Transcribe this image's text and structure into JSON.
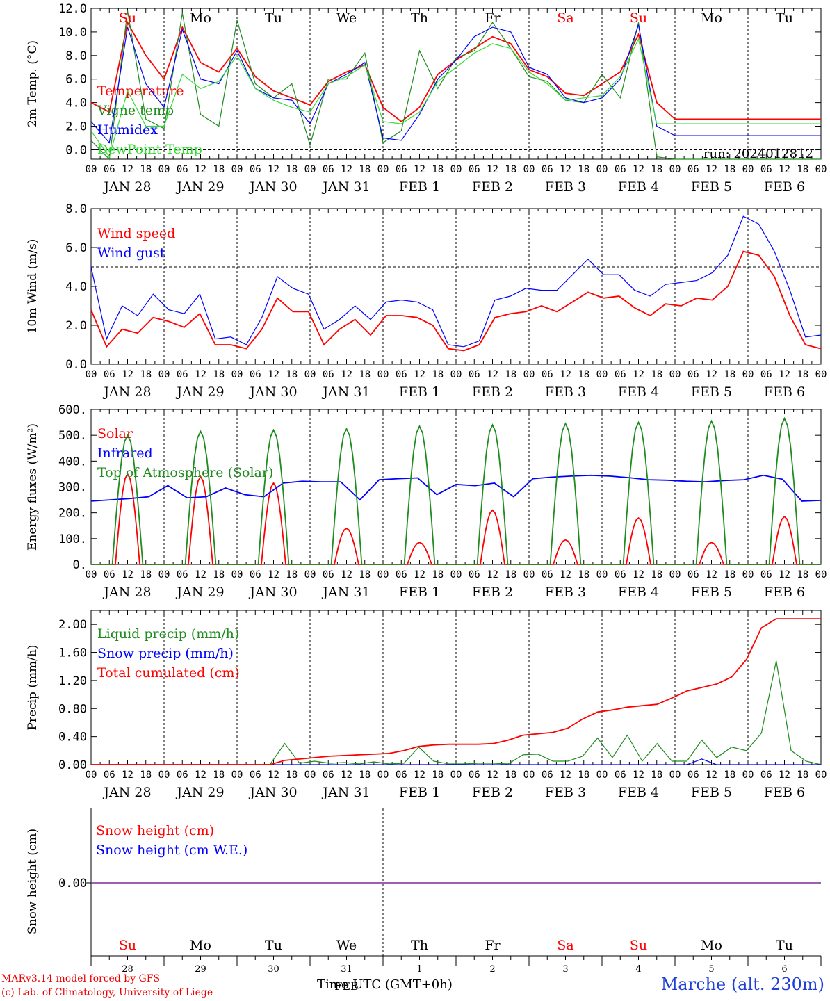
{
  "days": [
    "JAN 28",
    "JAN 29",
    "JAN 30",
    "JAN 31",
    "FEB  1",
    "FEB  2",
    "FEB  3",
    "FEB  4",
    "FEB  5",
    "FEB  6"
  ],
  "weekdays": [
    "Su",
    "Mo",
    "Tu",
    "We",
    "Th",
    "Fr",
    "Sa",
    "Su",
    "Mo",
    "Tu"
  ],
  "weekend_flags": [
    true,
    false,
    false,
    false,
    false,
    false,
    true,
    true,
    false,
    false
  ],
  "day_numbers": [
    "28",
    "29",
    "30",
    "31",
    "1",
    "2",
    "3",
    "4",
    "5",
    "6"
  ],
  "hour_ticks": [
    "00",
    "06",
    "12",
    "18"
  ],
  "colors": {
    "red": "#ff0000",
    "blue": "#0000ff",
    "darkgreen": "#1e8c1e",
    "lightgreen": "#33dd33",
    "purple": "#7a2a9a"
  },
  "footer": {
    "model_line1": "MARv3.14 model forced by GFS",
    "model_line2": "(c) Lab. of Climatology, University of Liege",
    "axis_title": "Time UTC (GMT+0h)",
    "station": "Marche (alt. 230m)",
    "month_label": "FEB"
  },
  "chart_data": [
    {
      "type": "line",
      "ylabel": "2m Temp. (°C)",
      "ylim": [
        -0.8,
        12.0
      ],
      "yticks": [
        "12.0",
        "10.0",
        "8.0",
        "6.0",
        "4.0",
        "2.0",
        "0.0"
      ],
      "ytick_values": [
        12,
        10,
        8,
        6,
        4,
        2,
        0
      ],
      "run_label": "run: 2024012812",
      "dashed_zero": true,
      "x_hours": [
        0,
        6,
        12,
        18,
        24,
        30,
        36,
        42,
        48,
        54,
        60,
        66,
        72,
        78,
        84,
        90,
        96,
        102,
        108,
        114,
        120,
        126,
        132,
        138,
        144,
        150,
        156,
        162,
        168,
        174,
        180,
        186,
        192,
        198,
        204,
        210,
        216,
        222,
        228,
        234,
        240
      ],
      "series": [
        {
          "name": "Temperature",
          "color": "red",
          "values": [
            4.0,
            3.2,
            10.8,
            8.0,
            6.0,
            10.4,
            7.4,
            6.6,
            8.6,
            6.2,
            5.0,
            4.4,
            3.8,
            5.8,
            6.6,
            7.2,
            3.6,
            2.4,
            3.6,
            6.4,
            7.6,
            8.6,
            9.6,
            9.0,
            6.8,
            6.2,
            4.8,
            4.6,
            5.6,
            6.6,
            9.8,
            4.0,
            2.6,
            2.6,
            2.6,
            2.6,
            2.6,
            2.6,
            2.6,
            2.6,
            2.6
          ]
        },
        {
          "name": "Vigne temp",
          "color": "darkgreen",
          "values": [
            0.8,
            -0.8,
            11.8,
            2.6,
            1.8,
            11.6,
            3.0,
            2.0,
            11.0,
            5.6,
            4.4,
            5.6,
            0.4,
            6.0,
            6.0,
            8.2,
            0.6,
            1.6,
            8.4,
            5.2,
            7.8,
            8.4,
            10.8,
            8.6,
            6.2,
            5.8,
            4.2,
            4.0,
            6.4,
            4.4,
            10.8,
            -0.6,
            -0.8,
            -0.8,
            -0.8,
            -0.8,
            -0.8,
            -0.8,
            -0.8,
            -0.8,
            -0.8
          ]
        },
        {
          "name": "Humidex",
          "color": "blue",
          "values": [
            2.4,
            0.6,
            10.4,
            5.6,
            3.6,
            10.2,
            6.0,
            5.6,
            8.4,
            5.2,
            4.4,
            4.2,
            2.2,
            5.6,
            6.4,
            7.4,
            1.0,
            0.8,
            3.0,
            6.0,
            7.6,
            9.6,
            10.4,
            10.0,
            7.0,
            6.4,
            4.4,
            4.0,
            4.4,
            6.0,
            10.6,
            2.0,
            1.2,
            1.2,
            1.2,
            1.2,
            1.2,
            1.2,
            1.2,
            1.2,
            1.2
          ]
        },
        {
          "name": "DewPoint Temp",
          "color": "lightgreen",
          "values": [
            1.6,
            -0.6,
            5.0,
            2.0,
            2.0,
            6.4,
            5.2,
            5.8,
            8.0,
            5.2,
            4.2,
            3.6,
            3.2,
            5.6,
            6.2,
            7.2,
            2.4,
            2.2,
            3.2,
            5.8,
            7.0,
            8.2,
            9.0,
            8.6,
            6.6,
            5.6,
            4.2,
            4.4,
            4.6,
            6.2,
            9.4,
            2.2,
            2.2,
            2.2,
            2.2,
            2.2,
            2.2,
            2.2,
            2.2,
            2.2,
            2.2
          ]
        }
      ]
    },
    {
      "type": "line",
      "ylabel": "10m Wind (m/s)",
      "ylim": [
        0,
        8.0
      ],
      "yticks": [
        "8.0",
        "6.0",
        "4.0",
        "2.0",
        "0.0"
      ],
      "ytick_values": [
        8,
        6,
        4,
        2,
        0
      ],
      "dashed_level": 5.0,
      "series": [
        {
          "name": "Wind speed",
          "color": "red",
          "values": [
            2.8,
            0.9,
            1.8,
            1.6,
            2.4,
            2.2,
            1.9,
            2.6,
            1.0,
            1.0,
            0.8,
            1.8,
            3.4,
            2.7,
            2.7,
            1.0,
            1.8,
            2.3,
            1.5,
            2.5,
            2.5,
            2.4,
            2.0,
            0.8,
            0.7,
            1.0,
            2.4,
            2.6,
            2.7,
            3.0,
            2.7,
            3.2,
            3.7,
            3.4,
            3.5,
            2.9,
            2.5,
            3.1,
            3.0,
            3.4,
            3.3,
            4.0,
            5.8,
            5.6,
            4.5,
            2.5,
            1.0,
            0.8
          ]
        },
        {
          "name": "Wind gust",
          "color": "blue",
          "values": [
            5.0,
            1.3,
            3.0,
            2.5,
            3.6,
            2.8,
            2.6,
            3.6,
            1.3,
            1.4,
            1.0,
            2.4,
            4.5,
            3.9,
            3.6,
            1.8,
            2.3,
            3.0,
            2.3,
            3.2,
            3.3,
            3.2,
            2.8,
            1.0,
            0.9,
            1.2,
            3.3,
            3.5,
            3.9,
            3.8,
            3.8,
            4.6,
            5.4,
            4.6,
            4.6,
            3.8,
            3.5,
            4.1,
            4.2,
            4.3,
            4.7,
            5.6,
            7.6,
            7.2,
            5.8,
            3.8,
            1.4,
            1.5
          ]
        }
      ]
    },
    {
      "type": "line",
      "ylabel": "Energy fluxes (W/m²)",
      "ylim": [
        0,
        600
      ],
      "yticks": [
        "600.",
        "500.",
        "400.",
        "300.",
        "200.",
        "100.",
        "0."
      ],
      "ytick_values": [
        600,
        500,
        400,
        300,
        200,
        100,
        0
      ],
      "series": [
        {
          "name": "Solar",
          "color": "red",
          "peaks": [
            350,
            340,
            315,
            140,
            85,
            210,
            95,
            180,
            85,
            185
          ]
        },
        {
          "name": "Infrared",
          "color": "blue",
          "values": [
            245,
            250,
            255,
            262,
            305,
            258,
            262,
            296,
            270,
            262,
            315,
            322,
            320,
            320,
            250,
            328,
            332,
            335,
            270,
            310,
            305,
            315,
            262,
            332,
            338,
            342,
            345,
            342,
            336,
            328,
            326,
            322,
            320,
            325,
            328,
            345,
            330,
            245,
            248
          ]
        },
        {
          "name": "Top of Atmosphere (Solar)",
          "color": "darkgreen",
          "peaks": [
            500,
            515,
            520,
            525,
            535,
            540,
            545,
            550,
            555,
            565
          ]
        }
      ]
    },
    {
      "type": "line",
      "ylabel": "Precip (mm/h)",
      "ylim": [
        0,
        2.2
      ],
      "yticks": [
        "2.00",
        "1.60",
        "1.20",
        "0.80",
        "0.40",
        "0.00"
      ],
      "ytick_values": [
        2.0,
        1.6,
        1.2,
        0.8,
        0.4,
        0.0
      ],
      "series": [
        {
          "name": "Liquid precip (mm/h)",
          "color": "darkgreen",
          "values": [
            0,
            0,
            0,
            0,
            0,
            0,
            0,
            0,
            0,
            0,
            0,
            0,
            0,
            0.3,
            0.02,
            0.05,
            0.02,
            0.03,
            0.01,
            0.04,
            0.01,
            0.02,
            0.25,
            0.05,
            0.01,
            0.01,
            0.02,
            0.02,
            0.01,
            0.14,
            0.15,
            0.05,
            0.05,
            0.12,
            0.38,
            0.1,
            0.42,
            0.05,
            0.3,
            0.05,
            0.05,
            0.35,
            0.1,
            0.25,
            0.2,
            0.45,
            1.48,
            0.2,
            0.05,
            0.0
          ]
        },
        {
          "name": "Snow precip (mm/h)",
          "color": "blue",
          "values": [
            0,
            0,
            0,
            0,
            0,
            0,
            0,
            0,
            0,
            0,
            0,
            0,
            0,
            0,
            0,
            0,
            0,
            0,
            0,
            0,
            0,
            0,
            0,
            0,
            0,
            0,
            0,
            0,
            0,
            0,
            0,
            0,
            0,
            0,
            0,
            0,
            0,
            0,
            0,
            0,
            0,
            0.08,
            0,
            0,
            0,
            0,
            0,
            0,
            0,
            0
          ]
        },
        {
          "name": "Total cumulated (cm)",
          "color": "red",
          "values": [
            0,
            0,
            0,
            0,
            0,
            0,
            0,
            0,
            0,
            0,
            0,
            0,
            0,
            0.06,
            0.08,
            0.1,
            0.12,
            0.13,
            0.14,
            0.15,
            0.16,
            0.2,
            0.26,
            0.28,
            0.29,
            0.29,
            0.29,
            0.3,
            0.35,
            0.42,
            0.44,
            0.46,
            0.52,
            0.65,
            0.75,
            0.78,
            0.82,
            0.84,
            0.86,
            0.95,
            1.05,
            1.1,
            1.15,
            1.25,
            1.5,
            1.95,
            2.08,
            2.08,
            2.08,
            2.08
          ]
        }
      ]
    },
    {
      "type": "line",
      "ylabel": "Snow height (cm)",
      "yticks": [
        "0.00"
      ],
      "ytick_values": [
        0
      ],
      "series": [
        {
          "name": "Snow height (cm)",
          "color": "red",
          "values": [
            0,
            0
          ]
        },
        {
          "name": "Snow height (cm W.E.)",
          "color": "blue",
          "values": [
            0,
            0
          ]
        }
      ]
    }
  ]
}
